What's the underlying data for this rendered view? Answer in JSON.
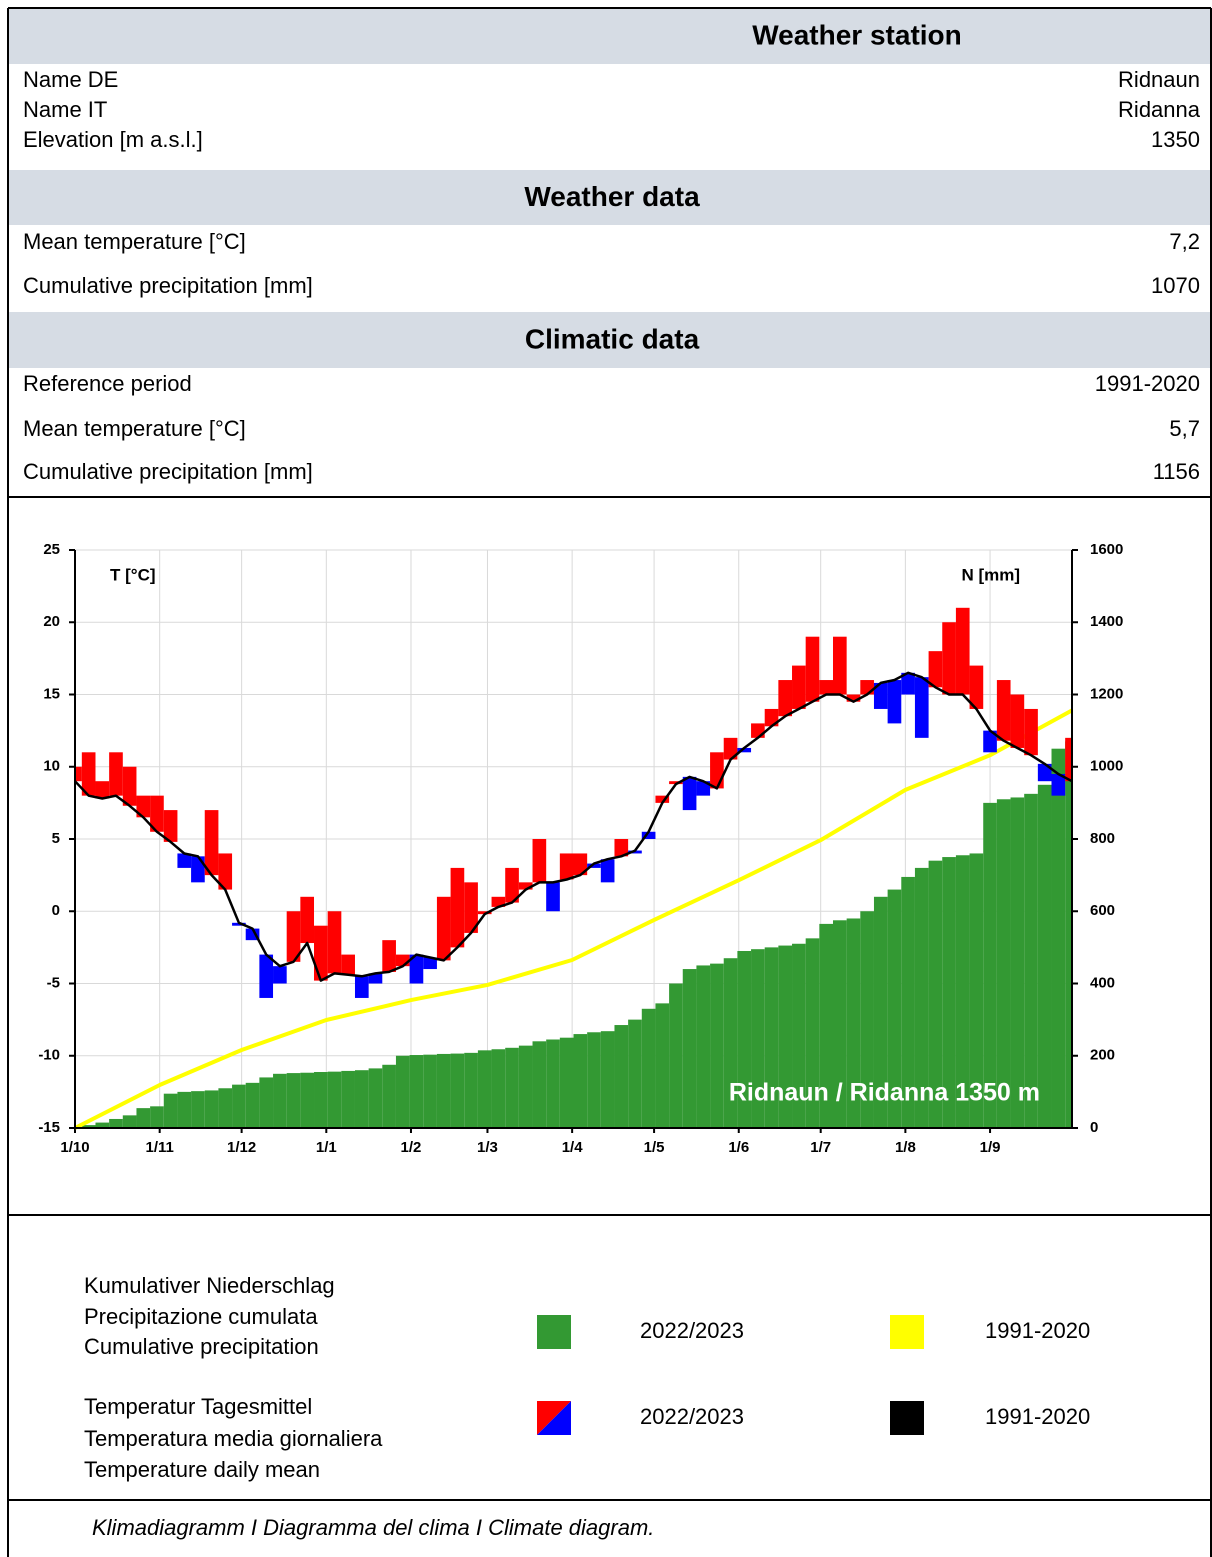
{
  "tables": [
    {
      "title": "Weather station",
      "rows": [
        [
          "Name DE",
          "Ridnaun"
        ],
        [
          "Name IT",
          "Ridanna"
        ],
        [
          "Elevation [m a.s.l.]",
          "1350"
        ]
      ]
    },
    {
      "title": "Weather data",
      "rows": [
        [
          "Mean temperature [°C]",
          "7,2"
        ],
        [
          "Cumulative precipitation [mm]",
          "1070"
        ]
      ]
    },
    {
      "title": "Climatic data",
      "rows": [
        [
          "Reference period",
          "1991-2020"
        ],
        [
          "Mean temperature [°C]",
          "5,7"
        ],
        [
          "Cumulative precipitation [mm]",
          "1156"
        ]
      ]
    }
  ],
  "chart_data": {
    "type": "climate",
    "ylabel": "T [°C]",
    "y2label": "N [mm]",
    "annotation": "Ridnaun / Ridanna 1350 m",
    "xlim": [
      0,
      365
    ],
    "xticks": [
      {
        "value": 0,
        "label": "1/10"
      },
      {
        "value": 31,
        "label": "1/11"
      },
      {
        "value": 61,
        "label": "1/12"
      },
      {
        "value": 92,
        "label": "1/1"
      },
      {
        "value": 123,
        "label": "1/2"
      },
      {
        "value": 151,
        "label": "1/3"
      },
      {
        "value": 182,
        "label": "1/4"
      },
      {
        "value": 212,
        "label": "1/5"
      },
      {
        "value": 243,
        "label": "1/6"
      },
      {
        "value": 273,
        "label": "1/7"
      },
      {
        "value": 304,
        "label": "1/8"
      },
      {
        "value": 335,
        "label": "1/9"
      }
    ],
    "ylim": [
      -15,
      25
    ],
    "yticks": [
      -15,
      -10,
      -5,
      0,
      5,
      10,
      15,
      20,
      25
    ],
    "y2lim": [
      0,
      1600
    ],
    "y2ticks": [
      0,
      200,
      400,
      600,
      800,
      1000,
      1200,
      1400,
      1600
    ],
    "grid": true,
    "x": [
      0,
      5,
      10,
      15,
      20,
      25,
      30,
      35,
      40,
      45,
      50,
      55,
      60,
      65,
      70,
      75,
      80,
      85,
      90,
      95,
      100,
      105,
      110,
      115,
      120,
      125,
      130,
      135,
      140,
      145,
      150,
      155,
      160,
      165,
      170,
      175,
      180,
      185,
      190,
      195,
      200,
      205,
      210,
      215,
      220,
      225,
      230,
      235,
      240,
      245,
      250,
      255,
      260,
      265,
      270,
      275,
      280,
      285,
      290,
      295,
      300,
      305,
      310,
      315,
      320,
      325,
      330,
      335,
      340,
      345,
      350,
      355,
      360,
      365
    ],
    "series": [
      {
        "kind": "area",
        "axis": "y2",
        "color": "#339933",
        "values": [
          0,
          8,
          15,
          25,
          35,
          55,
          60,
          95,
          100,
          102,
          104,
          110,
          120,
          125,
          140,
          150,
          152,
          153,
          155,
          156,
          158,
          160,
          165,
          175,
          200,
          202,
          203,
          205,
          206,
          208,
          215,
          218,
          222,
          228,
          240,
          245,
          250,
          260,
          265,
          268,
          285,
          300,
          330,
          345,
          400,
          440,
          450,
          455,
          470,
          490,
          495,
          500,
          505,
          510,
          525,
          565,
          575,
          580,
          600,
          640,
          660,
          695,
          720,
          740,
          750,
          755,
          760,
          900,
          910,
          915,
          925,
          950,
          1050,
          1070
        ]
      },
      {
        "kind": "line",
        "axis": "y2",
        "color": "#ffff00",
        "x": [
          0,
          31,
          61,
          92,
          123,
          151,
          182,
          212,
          243,
          273,
          304,
          335,
          365
        ],
        "values": [
          0,
          119,
          216,
          299,
          354,
          396,
          465,
          576,
          686,
          797,
          936,
          1032,
          1156
        ]
      },
      {
        "kind": "deviation",
        "reference": 3,
        "colors": [
          "#ff0000",
          "#0000ff"
        ],
        "values": [
          10,
          11,
          9,
          11,
          10,
          8,
          8,
          7,
          3,
          2,
          7,
          4,
          -1,
          -2,
          -6,
          -5,
          0,
          1,
          -1,
          0,
          -3,
          -6,
          -5,
          -2,
          -3,
          -5,
          -4,
          1,
          3,
          2,
          0,
          1,
          3,
          2,
          5,
          0,
          4,
          4,
          3,
          2,
          5,
          4,
          5,
          8,
          9,
          7,
          8,
          11,
          12,
          11,
          13,
          14,
          16,
          17,
          19,
          16,
          19,
          15,
          16,
          14,
          13,
          15,
          12,
          18,
          20,
          21,
          17,
          11,
          16,
          15,
          14,
          9,
          8,
          12
        ]
      },
      {
        "kind": "line",
        "color": "#000000",
        "values": [
          9,
          8,
          7.8,
          8,
          7.3,
          6.5,
          5.5,
          4.8,
          4,
          3.8,
          2.5,
          1.5,
          -0.8,
          -1.2,
          -3,
          -3.8,
          -3.5,
          -2.2,
          -4.8,
          -4.3,
          -4.4,
          -4.5,
          -4.3,
          -4.2,
          -3.8,
          -3,
          -3.2,
          -3.4,
          -2.5,
          -1.5,
          -0.2,
          0.3,
          0.6,
          1.5,
          2,
          2,
          2.2,
          2.5,
          3.3,
          3.6,
          3.8,
          4.2,
          5.5,
          7.5,
          8.8,
          9.3,
          9,
          8.5,
          10.5,
          11.3,
          12,
          12.8,
          13.5,
          14,
          14.5,
          15,
          15,
          14.5,
          15,
          15.8,
          16,
          16.5,
          16.2,
          15.5,
          15,
          15,
          14,
          12.5,
          11.8,
          11.3,
          10.8,
          10.2,
          9.5,
          9
        ]
      }
    ]
  },
  "legend": {
    "groups": [
      {
        "lines": [
          "Kumulativer Niederschlag",
          "Precipitazione cumulata",
          "Cumulative precipitation"
        ],
        "entries": [
          {
            "label": "2022/2023",
            "colors": [
              "#339933"
            ]
          },
          {
            "label": "1991-2020",
            "colors": [
              "#ffff00"
            ]
          }
        ]
      },
      {
        "lines": [
          "Temperatur Tagesmittel",
          "Temperatura media giornaliera",
          "Temperature daily mean"
        ],
        "entries": [
          {
            "label": "2022/2023",
            "colors": [
              "#ff0000",
              "#0000ff"
            ]
          },
          {
            "label": "1991-2020",
            "colors": [
              "#000000"
            ]
          }
        ]
      }
    ]
  },
  "caption": "Klimadiagramm I Diagramma del clima I Climate diagram."
}
